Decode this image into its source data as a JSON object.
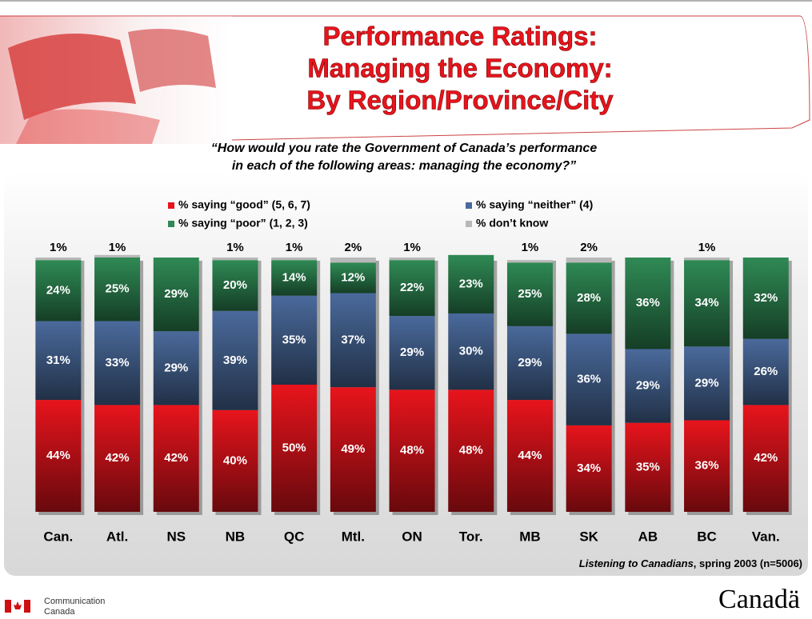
{
  "chart_data": {
    "type": "stacked_bar",
    "title": [
      "Performance Ratings:",
      "Managing the Economy:",
      "By Region/Province/City"
    ],
    "subtitle": [
      "“How would you rate the Government of Canada’s performance",
      "in each of the following areas: managing the economy?”"
    ],
    "categories": [
      "Can.",
      "Atl.",
      "NS",
      "NB",
      "QC",
      "Mtl.",
      "ON",
      "Tor.",
      "MB",
      "SK",
      "AB",
      "BC",
      "Van."
    ],
    "ylim": [
      0,
      100
    ],
    "series": [
      {
        "name": "% saying “good” (5, 6, 7)",
        "color": "#e8141c",
        "values": [
          44,
          42,
          42,
          40,
          50,
          49,
          48,
          48,
          44,
          34,
          35,
          36,
          42
        ],
        "value_labels": [
          "44%",
          "42%",
          "42%",
          "40%",
          "50%",
          "49%",
          "48%",
          "48%",
          "44%",
          "34%",
          "35%",
          "36%",
          "42%"
        ]
      },
      {
        "name": "% saying “neither” (4)",
        "color": "#4a6a9c",
        "values": [
          31,
          33,
          29,
          39,
          35,
          37,
          29,
          30,
          29,
          36,
          29,
          29,
          26
        ],
        "value_labels": [
          "31%",
          "33%",
          "29%",
          "39%",
          "35%",
          "37%",
          "29%",
          "30%",
          "29%",
          "36%",
          "29%",
          "29%",
          "26%"
        ]
      },
      {
        "name": "% saying “poor” (1, 2, 3)",
        "color": "#2f8a55",
        "values": [
          24,
          25,
          29,
          20,
          14,
          12,
          22,
          23,
          25,
          28,
          36,
          34,
          32
        ],
        "value_labels": [
          "24%",
          "25%",
          "29%",
          "20%",
          "14%",
          "12%",
          "22%",
          "23%",
          "25%",
          "28%",
          "36%",
          "34%",
          "32%"
        ]
      },
      {
        "name": "% don’t know",
        "color": "#b8b8b8",
        "values": [
          1,
          1,
          null,
          1,
          1,
          2,
          1,
          null,
          1,
          2,
          null,
          1,
          null
        ],
        "value_labels": [
          "1%",
          "1%",
          null,
          "1%",
          "1%",
          "2%",
          "1%",
          null,
          "1%",
          "2%",
          null,
          "1%",
          null
        ]
      }
    ],
    "source": {
      "italic": "Listening to Canadians",
      "rest": ", spring 2003 (n=5006)"
    },
    "footer": {
      "org": [
        "Communication",
        "Canada"
      ],
      "wordmark": "Canadä"
    }
  }
}
